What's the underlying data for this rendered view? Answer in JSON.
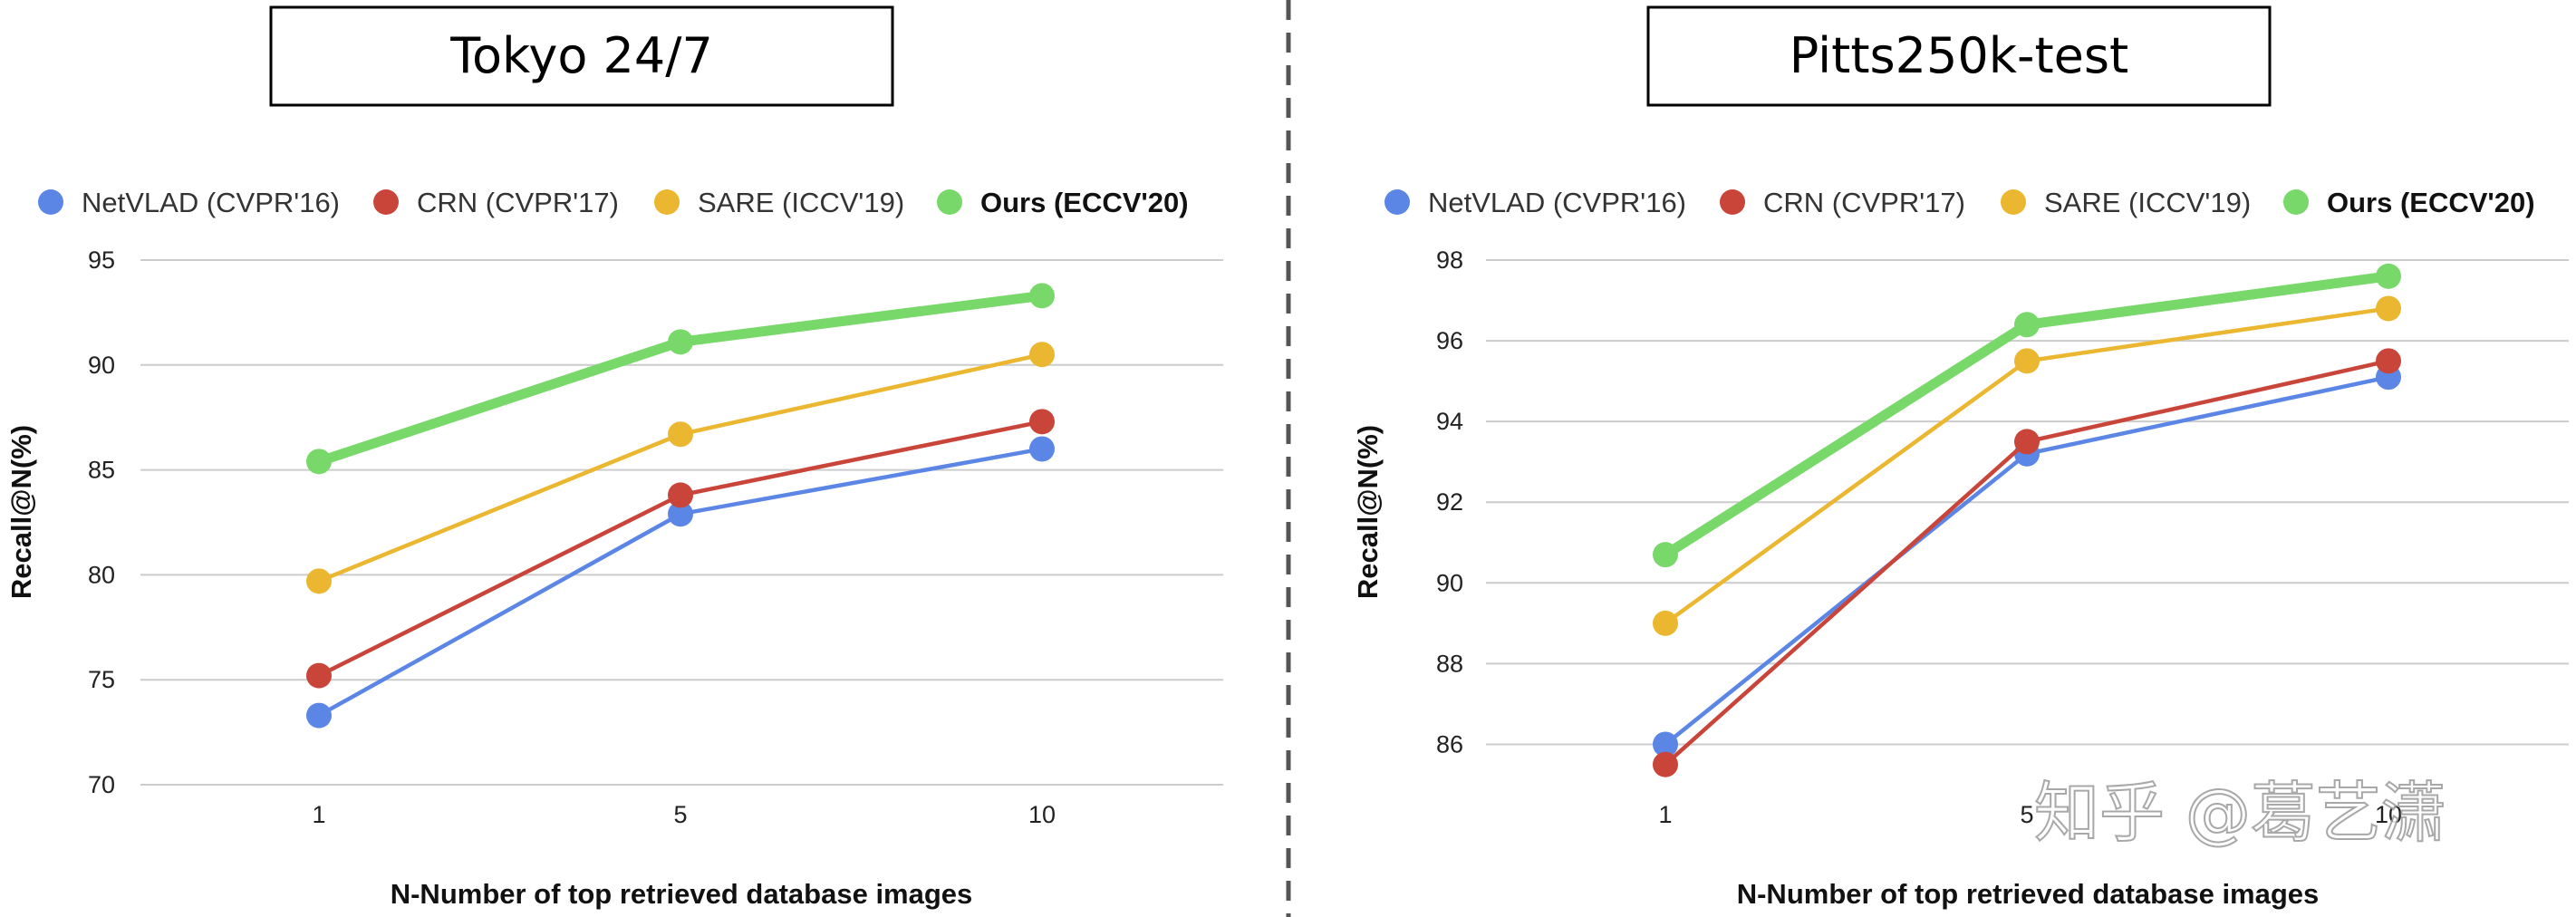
{
  "chart_data": [
    {
      "type": "line",
      "title": "Tokyo 24/7",
      "xlabel": "N-Number of top retrieved database images",
      "ylabel": "Recall@N(%)",
      "categories": [
        "1",
        "5",
        "10"
      ],
      "ylim": [
        70,
        95
      ],
      "yticks": [
        "70",
        "75",
        "80",
        "85",
        "90",
        "95"
      ],
      "grid": true,
      "legend_position": "top",
      "series": [
        {
          "name": "NetVLAD (CVPR'16)",
          "color": "#5b86e5",
          "bold": false,
          "values": [
            73.3,
            82.9,
            86.0
          ]
        },
        {
          "name": "CRN (CVPR'17)",
          "color": "#c9453a",
          "bold": false,
          "values": [
            75.2,
            83.8,
            87.3
          ]
        },
        {
          "name": "SARE (ICCV'19)",
          "color": "#ebb731",
          "bold": false,
          "values": [
            79.7,
            86.7,
            90.5
          ]
        },
        {
          "name": "Ours (ECCV'20)",
          "color": "#78d86a",
          "bold": true,
          "values": [
            85.4,
            91.1,
            93.3
          ]
        }
      ]
    },
    {
      "type": "line",
      "title": "Pitts250k-test",
      "xlabel": "N-Number of top retrieved database images",
      "ylabel": "Recall@N(%)",
      "categories": [
        "1",
        "5",
        "10"
      ],
      "ylim": [
        85,
        98
      ],
      "yticks": [
        "86",
        "88",
        "90",
        "92",
        "94",
        "96",
        "98"
      ],
      "grid": true,
      "legend_position": "top",
      "series": [
        {
          "name": "NetVLAD (CVPR'16)",
          "color": "#5b86e5",
          "bold": false,
          "values": [
            86.0,
            93.2,
            95.1
          ]
        },
        {
          "name": "CRN (CVPR'17)",
          "color": "#c9453a",
          "bold": false,
          "values": [
            85.5,
            93.5,
            95.5
          ]
        },
        {
          "name": "SARE (ICCV'19)",
          "color": "#ebb731",
          "bold": false,
          "values": [
            89.0,
            95.5,
            96.8
          ]
        },
        {
          "name": "Ours (ECCV'20)",
          "color": "#78d86a",
          "bold": true,
          "values": [
            90.7,
            96.4,
            97.6
          ]
        }
      ]
    }
  ],
  "watermark": "知乎 @葛艺潇"
}
